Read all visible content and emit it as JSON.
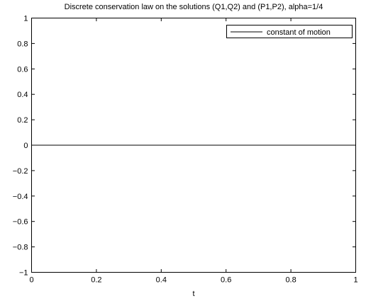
{
  "chart_data": {
    "type": "line",
    "title": "Discrete conservation law on the solutions (Q1,Q2) and (P1,P2), alpha=1/4",
    "xlabel": "t",
    "ylabel": "",
    "xlim": [
      0,
      1
    ],
    "ylim": [
      -1,
      1
    ],
    "xticks": [
      0,
      0.2,
      0.4,
      0.6,
      0.8,
      1
    ],
    "xtick_labels": [
      "0",
      "0.2",
      "0.4",
      "0.6",
      "0.8",
      "1"
    ],
    "yticks": [
      -1,
      -0.8,
      -0.6,
      -0.4,
      -0.2,
      0,
      0.2,
      0.4,
      0.6,
      0.8,
      1
    ],
    "ytick_labels": [
      "−1",
      "−0.8",
      "−0.6",
      "−0.4",
      "−0.2",
      "0",
      "0.2",
      "0.4",
      "0.6",
      "0.8",
      "1"
    ],
    "grid": false,
    "legend_position": "top-right",
    "series": [
      {
        "name": "constant of motion",
        "color": "#000000",
        "x": [
          0,
          1
        ],
        "y": [
          0,
          0
        ]
      }
    ]
  }
}
